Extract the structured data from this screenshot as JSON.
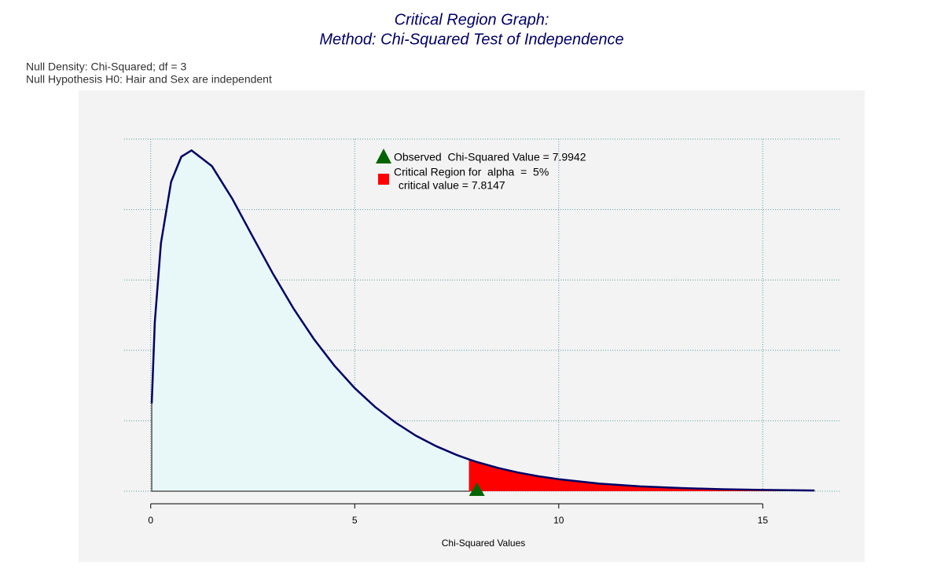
{
  "chart_data": {
    "type": "density",
    "title": [
      "Critical Region Graph:",
      "Method: Chi-Squared Test of Independence"
    ],
    "subtitle": [
      "Null Density: Chi-Squared; df = 3",
      "Null Hypothesis H0: Hair and Sex are independent"
    ],
    "x_label": "Chi-Squared Values",
    "x": [
      0.025,
      0.1,
      0.25,
      0.5,
      0.75,
      1,
      1.5,
      2,
      2.5,
      3,
      3.5,
      4,
      4.5,
      5,
      5.5,
      6,
      6.5,
      7,
      7.5,
      7.8147,
      8,
      8.5,
      9,
      9.5,
      10,
      11,
      12,
      13,
      14,
      15,
      16.27
    ],
    "density": [
      0.0623,
      0.12,
      0.176,
      0.2197,
      0.2375,
      0.242,
      0.2308,
      0.2076,
      0.1807,
      0.1542,
      0.1297,
      0.108,
      0.0892,
      0.0732,
      0.0598,
      0.0487,
      0.0394,
      0.0319,
      0.0257,
      0.0224,
      0.0207,
      0.0166,
      0.0133,
      0.0106,
      0.0085,
      0.0054,
      0.0034,
      0.0022,
      0.0014,
      0.0009,
      0.0005
    ],
    "xlim": [
      -0.65,
      16.92
    ],
    "ylim": [
      0,
      0.25
    ],
    "xticks": [
      0,
      5,
      10,
      15
    ],
    "ygrid": [
      0,
      0.05,
      0.1,
      0.15,
      0.2,
      0.25
    ],
    "grid": true,
    "curve_color": "#000066",
    "fill_color": "#e8f8f8",
    "critical_value": 7.8147,
    "critical_color": "#ff0000",
    "observed_value": 7.9942,
    "observed_color": "#006400",
    "legend": [
      "Observed  Chi-Squared Value = 7.9942",
      "Critical Region for  alpha  =  5%",
      " critical value = 7.8147"
    ]
  }
}
